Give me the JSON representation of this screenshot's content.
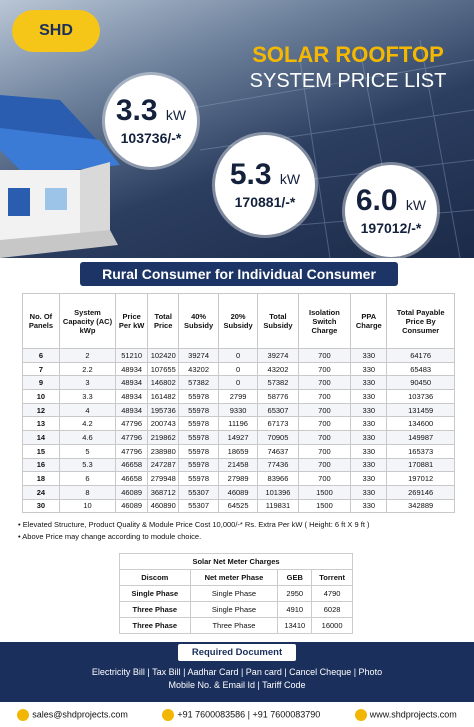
{
  "header": {
    "logo": "SHD",
    "title_line1": "SOLAR ROOFTOP",
    "title_line2": "SYSTEM PRICE LIST"
  },
  "highlights": [
    {
      "capacity": "3.3",
      "unit": "kW",
      "price": "103736/-*"
    },
    {
      "capacity": "5.3",
      "unit": "kW",
      "price": "170881/-*"
    },
    {
      "capacity": "6.0",
      "unit": "kW",
      "price": "197012/-*"
    }
  ],
  "banner": "Rural Consumer for Individual Consumer",
  "table": {
    "columns": [
      "No. Of Panels",
      "System Capacity (AC) kWp",
      "Price Per kW",
      "Total Price",
      "40% Subsidy",
      "20% Subsidy",
      "Total Subsidy",
      "Isolation Switch Charge",
      "PPA Charge",
      "Total Payable Price By Consumer"
    ],
    "rows": [
      [
        "6",
        "2",
        "51210",
        "102420",
        "39274",
        "0",
        "39274",
        "700",
        "330",
        "64176"
      ],
      [
        "7",
        "2.2",
        "48934",
        "107655",
        "43202",
        "0",
        "43202",
        "700",
        "330",
        "65483"
      ],
      [
        "9",
        "3",
        "48934",
        "146802",
        "57382",
        "0",
        "57382",
        "700",
        "330",
        "90450"
      ],
      [
        "10",
        "3.3",
        "48934",
        "161482",
        "55978",
        "2799",
        "58776",
        "700",
        "330",
        "103736"
      ],
      [
        "12",
        "4",
        "48934",
        "195736",
        "55978",
        "9330",
        "65307",
        "700",
        "330",
        "131459"
      ],
      [
        "13",
        "4.2",
        "47796",
        "200743",
        "55978",
        "11196",
        "67173",
        "700",
        "330",
        "134600"
      ],
      [
        "14",
        "4.6",
        "47796",
        "219862",
        "55978",
        "14927",
        "70905",
        "700",
        "330",
        "149987"
      ],
      [
        "15",
        "5",
        "47796",
        "238980",
        "55978",
        "18659",
        "74637",
        "700",
        "330",
        "165373"
      ],
      [
        "16",
        "5.3",
        "46658",
        "247287",
        "55978",
        "21458",
        "77436",
        "700",
        "330",
        "170881"
      ],
      [
        "18",
        "6",
        "46658",
        "279948",
        "55978",
        "27989",
        "83966",
        "700",
        "330",
        "197012"
      ],
      [
        "24",
        "8",
        "46089",
        "368712",
        "55307",
        "46089",
        "101396",
        "1500",
        "330",
        "269146"
      ],
      [
        "30",
        "10",
        "46089",
        "460890",
        "55307",
        "64525",
        "119831",
        "1500",
        "330",
        "342889"
      ]
    ]
  },
  "notes": [
    "Elevated Structure, Product Quality & Module Price Cost 10,000/-* Rs. Extra Per kW ( Height: 6 ft X 9 ft )",
    "Above Price may change according to module choice."
  ],
  "net_meter": {
    "title": "Solar Net Meter Charges",
    "columns": [
      "Discom",
      "Net meter Phase",
      "GEB",
      "Torrent"
    ],
    "rows": [
      [
        "Single Phase",
        "Single Phase",
        "2950",
        "4790"
      ],
      [
        "Three Phase",
        "Single Phase",
        "4910",
        "6028"
      ],
      [
        "Three Phase",
        "Three Phase",
        "13410",
        "16000"
      ]
    ]
  },
  "documents": {
    "title": "Required Document",
    "lines": [
      "Electricity Bill | Tax Bill | Aadhar Card | Pan card | Cancel Cheque | Photo",
      "Mobile No. & Email Id | Tariff Code"
    ]
  },
  "contact": {
    "email": "sales@shdprojects.com",
    "phone1": "+91 7600083586",
    "phone2": "+91 7600083790",
    "website": "www.shdprojects.com"
  }
}
